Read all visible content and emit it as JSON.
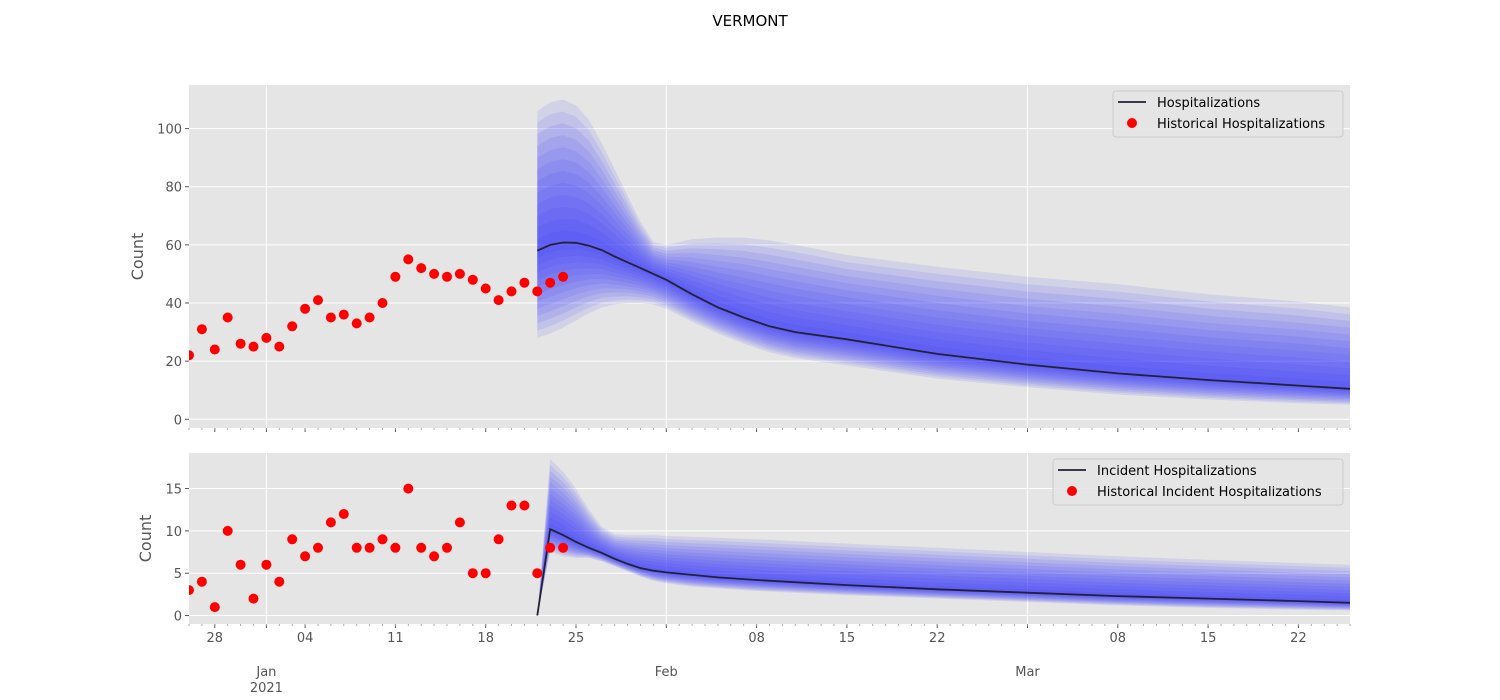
{
  "title": "VERMONT",
  "colors": {
    "panel_background": "#e5e5e5",
    "grid": "#ffffff",
    "median_line": "#222233",
    "historical_points": "#ff0000",
    "band_fill": "#3333ff",
    "tick_text": "#555555"
  },
  "x_axis": {
    "major_ticks": [
      {
        "date": "2021-01-01",
        "label": "Jan",
        "sublabel": "2021"
      },
      {
        "date": "2021-02-01",
        "label": "Feb",
        "sublabel": ""
      },
      {
        "date": "2021-03-01",
        "label": "Mar",
        "sublabel": ""
      }
    ],
    "minor_ticks": [
      {
        "date": "2020-12-28",
        "label": "28"
      },
      {
        "date": "2021-01-04",
        "label": "04"
      },
      {
        "date": "2021-01-11",
        "label": "11"
      },
      {
        "date": "2021-01-18",
        "label": "18"
      },
      {
        "date": "2021-01-25",
        "label": "25"
      },
      {
        "date": "2021-02-08",
        "label": "08"
      },
      {
        "date": "2021-02-15",
        "label": "15"
      },
      {
        "date": "2021-02-22",
        "label": "22"
      },
      {
        "date": "2021-03-08",
        "label": "08"
      },
      {
        "date": "2021-03-15",
        "label": "15"
      },
      {
        "date": "2021-03-22",
        "label": "22"
      }
    ],
    "range": [
      "2020-12-26",
      "2021-03-26"
    ]
  },
  "chart_data": [
    {
      "type": "line",
      "ylabel": "Count",
      "ylim": [
        -3,
        115
      ],
      "yticks": [
        0,
        20,
        40,
        60,
        80,
        100
      ],
      "grid": true,
      "legend_position": "top-right",
      "legend": [
        "Hospitalizations",
        "Historical Hospitalizations"
      ],
      "historical": {
        "name": "Historical Hospitalizations",
        "x": [
          "2020-12-26",
          "2020-12-27",
          "2020-12-28",
          "2020-12-29",
          "2020-12-30",
          "2020-12-31",
          "2021-01-01",
          "2021-01-02",
          "2021-01-03",
          "2021-01-04",
          "2021-01-05",
          "2021-01-06",
          "2021-01-07",
          "2021-01-08",
          "2021-01-09",
          "2021-01-10",
          "2021-01-11",
          "2021-01-12",
          "2021-01-13",
          "2021-01-14",
          "2021-01-15",
          "2021-01-16",
          "2021-01-17",
          "2021-01-18",
          "2021-01-19",
          "2021-01-20",
          "2021-01-21",
          "2021-01-22",
          "2021-01-23",
          "2021-01-24"
        ],
        "y": [
          22,
          31,
          24,
          35,
          26,
          25,
          28,
          25,
          32,
          38,
          41,
          35,
          36,
          33,
          35,
          40,
          49,
          55,
          52,
          50,
          49,
          50,
          48,
          45,
          41,
          44,
          47,
          44,
          47,
          49
        ]
      },
      "forecast": {
        "name": "Hospitalizations",
        "x": [
          "2021-01-22",
          "2021-01-23",
          "2021-01-24",
          "2021-01-25",
          "2021-01-26",
          "2021-01-27",
          "2021-01-28",
          "2021-01-29",
          "2021-01-30",
          "2021-01-31",
          "2021-02-01",
          "2021-02-03",
          "2021-02-05",
          "2021-02-07",
          "2021-02-09",
          "2021-02-11",
          "2021-02-15",
          "2021-02-22",
          "2021-03-01",
          "2021-03-08",
          "2021-03-15",
          "2021-03-22",
          "2021-03-26"
        ],
        "median": [
          58,
          60,
          60.8,
          60.7,
          59.7,
          58.2,
          56,
          54,
          52,
          50,
          48,
          43,
          38.5,
          35,
          32,
          30,
          27.5,
          22.5,
          18.8,
          15.8,
          13.5,
          11.6,
          10.5
        ],
        "lower": [
          28,
          29.5,
          31.5,
          34,
          36.5,
          38.5,
          39.5,
          40,
          40,
          39.5,
          38,
          33.5,
          29.5,
          26,
          23,
          21,
          18.5,
          14,
          11,
          8.5,
          6.8,
          5.5,
          5
        ],
        "upper": [
          106,
          109,
          110,
          108,
          103,
          95,
          86,
          77,
          68,
          61,
          60,
          62,
          62.5,
          62.5,
          61.5,
          60,
          56.5,
          52.5,
          49,
          46.5,
          43,
          40.5,
          38.5
        ]
      }
    },
    {
      "type": "line",
      "ylabel": "Count",
      "ylim": [
        -1,
        19.2
      ],
      "yticks": [
        0,
        5,
        10,
        15
      ],
      "grid": true,
      "legend_position": "top-right",
      "legend": [
        "Incident Hospitalizations",
        "Historical Incident Hospitalizations"
      ],
      "historical": {
        "name": "Historical Incident Hospitalizations",
        "x": [
          "2020-12-26",
          "2020-12-27",
          "2020-12-28",
          "2020-12-29",
          "2020-12-30",
          "2020-12-31",
          "2021-01-01",
          "2021-01-02",
          "2021-01-03",
          "2021-01-04",
          "2021-01-05",
          "2021-01-06",
          "2021-01-07",
          "2021-01-08",
          "2021-01-09",
          "2021-01-10",
          "2021-01-11",
          "2021-01-12",
          "2021-01-13",
          "2021-01-14",
          "2021-01-15",
          "2021-01-16",
          "2021-01-17",
          "2021-01-18",
          "2021-01-19",
          "2021-01-20",
          "2021-01-21",
          "2021-01-22",
          "2021-01-23",
          "2021-01-24"
        ],
        "y": [
          3,
          4,
          1,
          10,
          6,
          2,
          6,
          4,
          9,
          7,
          8,
          11,
          12,
          8,
          8,
          9,
          8,
          15,
          8,
          7,
          8,
          11,
          5,
          5,
          9,
          13,
          13,
          5,
          8,
          8
        ]
      },
      "forecast": {
        "name": "Incident Hospitalizations",
        "x": [
          "2021-01-22",
          "2021-01-23",
          "2021-01-24",
          "2021-01-25",
          "2021-01-26",
          "2021-01-27",
          "2021-01-28",
          "2021-01-29",
          "2021-01-30",
          "2021-01-31",
          "2021-02-01",
          "2021-02-03",
          "2021-02-05",
          "2021-02-08",
          "2021-02-15",
          "2021-02-22",
          "2021-03-01",
          "2021-03-08",
          "2021-03-15",
          "2021-03-22",
          "2021-03-26"
        ],
        "median": [
          0,
          10.2,
          9.5,
          8.7,
          8,
          7.4,
          6.7,
          6.1,
          5.6,
          5.3,
          5.1,
          4.8,
          4.5,
          4.2,
          3.6,
          3.1,
          2.7,
          2.3,
          2,
          1.7,
          1.5
        ],
        "lower": [
          0,
          7.5,
          7,
          6.8,
          6.8,
          6.4,
          5.8,
          5.2,
          4.6,
          4.1,
          3.8,
          3.4,
          3.2,
          2.9,
          2.4,
          2,
          1.6,
          1.2,
          0.9,
          0.7,
          0.6
        ],
        "upper": [
          0,
          18.5,
          17,
          15,
          12.5,
          10.5,
          9.6,
          9.5,
          9.5,
          9.5,
          9.4,
          9.3,
          9.2,
          9,
          8.5,
          8,
          7.5,
          7,
          6.6,
          6.2,
          6
        ]
      }
    }
  ]
}
